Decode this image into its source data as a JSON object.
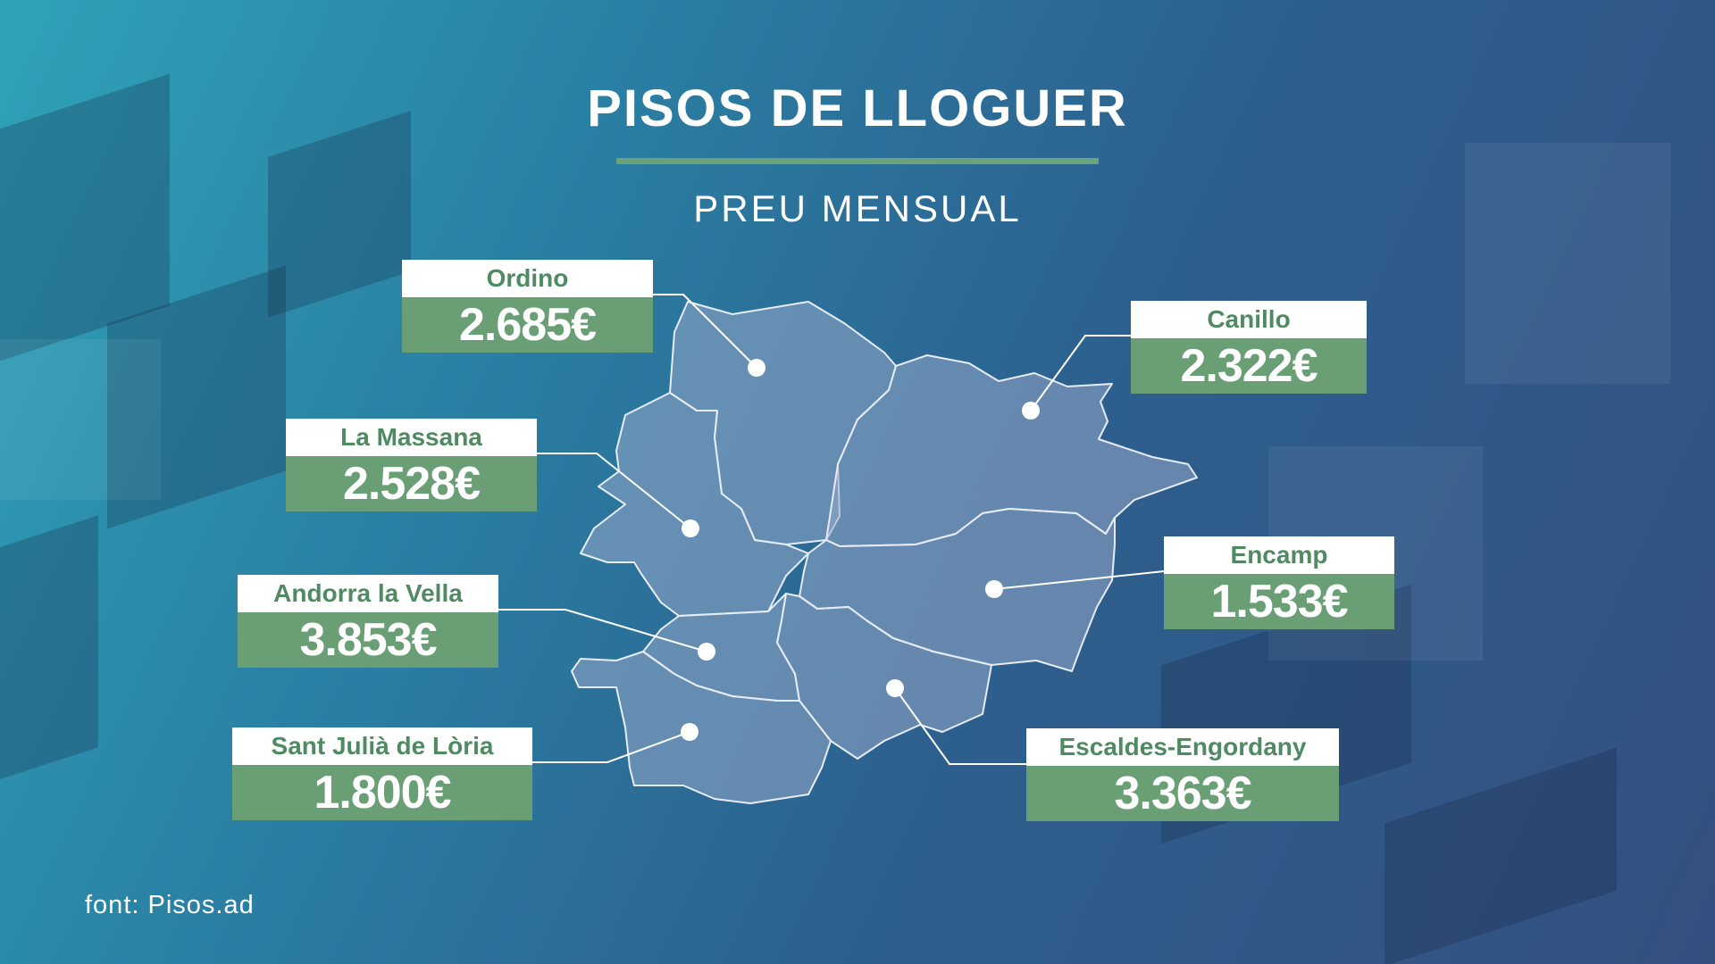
{
  "title": "PISOS DE LLOGUER",
  "subtitle": "PREU MENSUAL",
  "source": "font: Pisos.ad",
  "colors": {
    "accent_green": "#6a9f76",
    "label_text_green": "#4f8a63",
    "region_fill": "#8497b5",
    "marker": "#ffffff"
  },
  "parishes": [
    {
      "name": "Ordino",
      "price": "2.685€"
    },
    {
      "name": "Canillo",
      "price": "2.322€"
    },
    {
      "name": "La Massana",
      "price": "2.528€"
    },
    {
      "name": "Encamp",
      "price": "1.533€"
    },
    {
      "name": "Andorra la Vella",
      "price": "3.853€"
    },
    {
      "name": "Escaldes-Engordany",
      "price": "3.363€"
    },
    {
      "name": "Sant Julià de Lòria",
      "price": "1.800€"
    }
  ]
}
